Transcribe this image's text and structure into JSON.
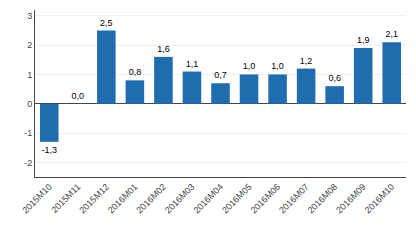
{
  "chart_data": {
    "type": "bar",
    "categories": [
      "2015M10",
      "2015M11",
      "2015M12",
      "2016M01",
      "2016M02",
      "2016M03",
      "2016M04",
      "2016M05",
      "2016M06",
      "2016M07",
      "2016M08",
      "2016M09",
      "2016M10"
    ],
    "values": [
      -1.3,
      0.0,
      2.5,
      0.8,
      1.6,
      1.1,
      0.7,
      1.0,
      1.0,
      1.2,
      0.6,
      1.9,
      2.1
    ],
    "value_labels": [
      "-1,3",
      "0,0",
      "2,5",
      "0,8",
      "1,6",
      "1,1",
      "0,7",
      "1,0",
      "1,0",
      "1,2",
      "0,6",
      "1,9",
      "2,1"
    ],
    "data_labels": true,
    "color": "#1F6DAF",
    "ylim": [
      -2.5,
      3.2
    ],
    "yticks": [
      -2,
      -1,
      0,
      1,
      2,
      3
    ],
    "grid": true
  }
}
